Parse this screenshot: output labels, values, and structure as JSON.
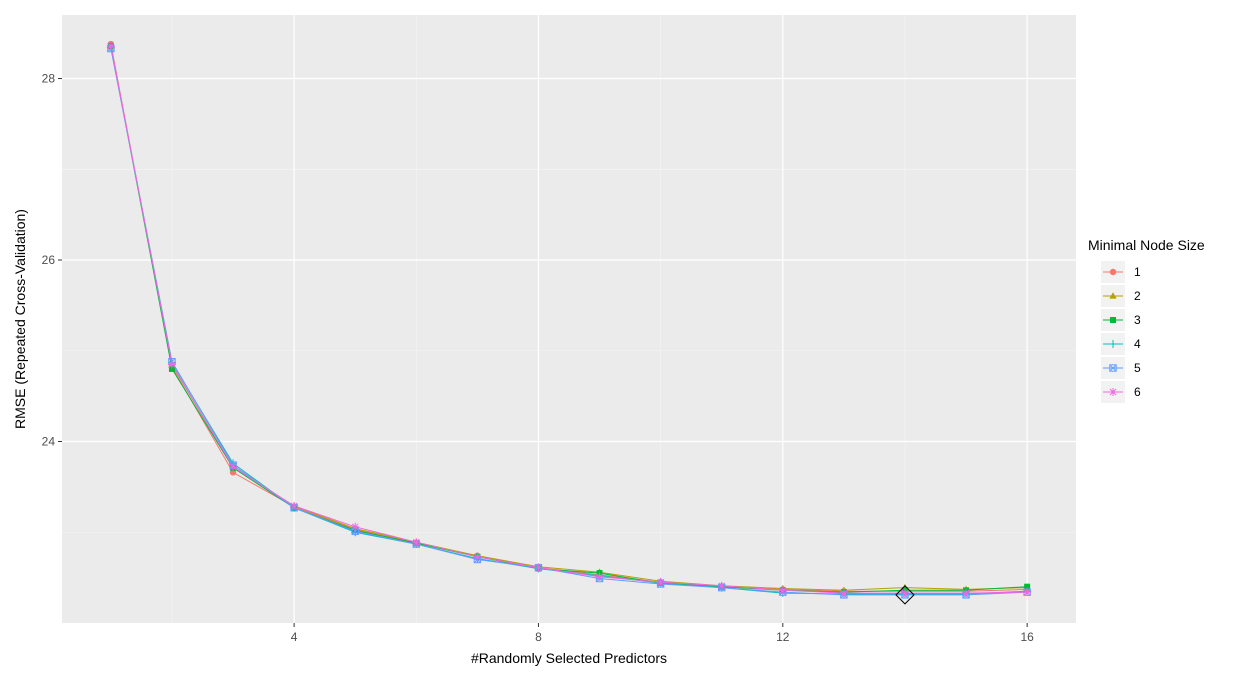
{
  "chart_data": {
    "type": "line",
    "title": "",
    "xlabel": "#Randomly Selected Predictors",
    "ylabel": "RMSE (Repeated Cross-Validation)",
    "xlim": [
      0.2,
      16.8
    ],
    "ylim": [
      22.0,
      28.7
    ],
    "x_ticks": [
      4,
      8,
      12,
      16
    ],
    "y_ticks": [
      24,
      26,
      28
    ],
    "x_tick_labels": [
      "4",
      "8",
      "12",
      "16"
    ],
    "y_tick_labels": [
      "24",
      "26",
      "28"
    ],
    "grid": true,
    "legend": {
      "title": "Minimal Node Size",
      "position": "right"
    },
    "x": [
      1,
      2,
      3,
      4,
      5,
      6,
      7,
      8,
      9,
      10,
      11,
      12,
      13,
      14,
      15,
      16
    ],
    "series": [
      {
        "name": "1",
        "color": "#F8766D",
        "shape": "circle",
        "values": [
          28.38,
          24.82,
          23.66,
          23.28,
          23.03,
          22.88,
          22.74,
          22.61,
          22.53,
          22.45,
          22.4,
          22.37,
          22.35,
          22.35,
          22.35,
          22.37
        ]
      },
      {
        "name": "2",
        "color": "#B79F00",
        "shape": "triangle",
        "values": [
          28.35,
          24.84,
          23.72,
          23.29,
          23.04,
          22.89,
          22.74,
          22.62,
          22.56,
          22.46,
          22.41,
          22.38,
          22.36,
          22.39,
          22.37,
          22.39
        ]
      },
      {
        "name": "3",
        "color": "#00BA38",
        "shape": "square",
        "values": [
          28.36,
          24.8,
          23.71,
          23.27,
          23.02,
          22.88,
          22.73,
          22.6,
          22.55,
          22.44,
          22.4,
          22.36,
          22.34,
          22.36,
          22.36,
          22.4
        ]
      },
      {
        "name": "4",
        "color": "#00BFC4",
        "shape": "plus",
        "values": [
          28.34,
          24.87,
          23.76,
          23.27,
          23.0,
          22.87,
          22.71,
          22.6,
          22.52,
          22.44,
          22.39,
          22.33,
          22.32,
          22.32,
          22.32,
          22.35
        ]
      },
      {
        "name": "5",
        "color": "#619CFF",
        "shape": "boxed-x",
        "values": [
          28.33,
          24.88,
          23.74,
          23.27,
          23.01,
          22.87,
          22.7,
          22.61,
          22.49,
          22.43,
          22.39,
          22.34,
          22.31,
          22.31,
          22.31,
          22.34
        ]
      },
      {
        "name": "6",
        "color": "#F564E3",
        "shape": "asterisk",
        "values": [
          28.36,
          24.85,
          23.72,
          23.29,
          23.06,
          22.89,
          22.73,
          22.61,
          22.51,
          22.45,
          22.41,
          22.36,
          22.33,
          22.33,
          22.33,
          22.34
        ]
      }
    ],
    "best": {
      "x": 14,
      "y": 22.31
    }
  }
}
